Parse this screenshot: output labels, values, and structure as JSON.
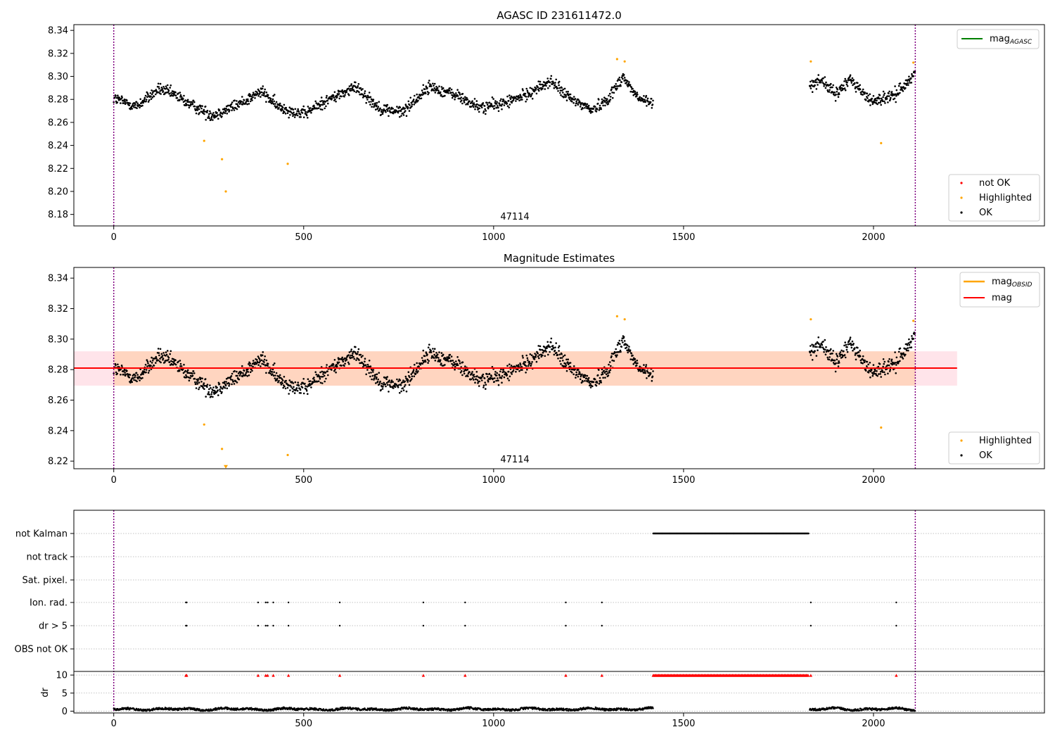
{
  "colors": {
    "ok": "#000000",
    "highlighted": "#ffa500",
    "not_ok": "#ff0000",
    "obs_boundary": "#800080",
    "mag_agasc": "#008000",
    "mag_obsid": "#ffa500",
    "mag": "#ff0000",
    "band_inner": "#ffd5c0",
    "band_outer": "#ffe4ea",
    "grid": "#b0b0b0"
  },
  "chart_data": [
    {
      "type": "scatter",
      "title": "AGASC ID 231611472.0",
      "xlabel": "",
      "ylabel": "",
      "xlim": [
        -105,
        2450
      ],
      "ylim": [
        8.17,
        8.345
      ],
      "yticks": [
        "8.18",
        "8.20",
        "8.22",
        "8.24",
        "8.26",
        "8.28",
        "8.30",
        "8.32",
        "8.34"
      ],
      "xticks": [
        "0",
        "500",
        "1000",
        "1500",
        "2000"
      ],
      "obs_boundaries": [
        0,
        2110
      ],
      "obsid_label": "47114",
      "legend_upper": [
        {
          "name": "mag$_{AGASC}$",
          "label_main": "mag",
          "label_sub": "AGASC",
          "color": "#008000",
          "marker": "line"
        }
      ],
      "legend_lower": [
        {
          "name": "not OK",
          "color": "#ff0000",
          "marker": "dot"
        },
        {
          "name": "Highlighted",
          "color": "#ffa500",
          "marker": "dot"
        },
        {
          "name": "OK",
          "color": "#000000",
          "marker": "dot"
        }
      ],
      "highlighted_points": [
        [
          238,
          8.244
        ],
        [
          285,
          8.228
        ],
        [
          295,
          8.2
        ],
        [
          458,
          8.224
        ],
        [
          1325,
          8.315
        ],
        [
          1345,
          8.313
        ],
        [
          1835,
          8.313
        ],
        [
          2020,
          8.242
        ],
        [
          2105,
          8.312
        ]
      ]
    },
    {
      "type": "scatter",
      "title": "Magnitude Estimates",
      "xlabel": "",
      "ylabel": "",
      "xlim": [
        -105,
        2450
      ],
      "ylim": [
        8.215,
        8.347
      ],
      "yticks": [
        "8.22",
        "8.24",
        "8.26",
        "8.28",
        "8.30",
        "8.32",
        "8.34"
      ],
      "xticks": [
        "0",
        "500",
        "1000",
        "1500",
        "2000"
      ],
      "obs_boundaries": [
        0,
        2110
      ],
      "obsid_label": "47114",
      "mag_mean": 8.281,
      "mag_band": [
        8.2695,
        8.292
      ],
      "mag_line_x": [
        -105,
        2220
      ],
      "legend_upper": [
        {
          "name": "mag$_{OBSID}$",
          "label_main": "mag",
          "label_sub": "OBSID",
          "color": "#ffa500",
          "marker": "line"
        },
        {
          "name": "mag",
          "label_main": "mag",
          "label_sub": "",
          "color": "#ff0000",
          "marker": "line"
        }
      ],
      "legend_lower": [
        {
          "name": "Highlighted",
          "color": "#ffa500",
          "marker": "dot"
        },
        {
          "name": "OK",
          "color": "#000000",
          "marker": "dot"
        }
      ],
      "highlighted_points": [
        [
          238,
          8.244
        ],
        [
          285,
          8.228
        ],
        [
          458,
          8.224
        ],
        [
          1325,
          8.315
        ],
        [
          1345,
          8.313
        ],
        [
          1835,
          8.313
        ],
        [
          2020,
          8.242
        ],
        [
          2105,
          8.312
        ]
      ],
      "offscale_points": [
        [
          295,
          8.2165
        ]
      ]
    },
    {
      "type": "scatter",
      "title": "",
      "xlabel": "",
      "ylabel": "dr",
      "xlim": [
        -105,
        2450
      ],
      "xticks": [
        "0",
        "500",
        "1000",
        "1500",
        "2000"
      ],
      "obs_boundaries": [
        0,
        2110
      ],
      "flag_rows": [
        "not Kalman",
        "not track",
        "Sat. pixel.",
        "Ion. rad.",
        "dr > 5",
        "OBS not OK"
      ],
      "flag_events": {
        "not Kalman": {
          "range": [
            1420,
            1830
          ]
        },
        "Ion. rad.": {
          "x": [
            190,
            192,
            380,
            400,
            405,
            420,
            460,
            595,
            815,
            925,
            1190,
            1285,
            1835,
            2060
          ]
        },
        "dr > 5": {
          "x": [
            190,
            192,
            380,
            400,
            405,
            420,
            460,
            595,
            815,
            925,
            1190,
            1285,
            1835,
            2060
          ]
        }
      },
      "dr_ylim": [
        -0.5,
        11
      ],
      "dr_yticks": [
        "0",
        "5",
        "10"
      ],
      "dr_over_limit_x": [
        190,
        192,
        380,
        400,
        405,
        420,
        460,
        595,
        815,
        925,
        1190,
        1285,
        1835,
        2060
      ],
      "dr_over_limit_range": [
        1420,
        1830
      ]
    }
  ]
}
